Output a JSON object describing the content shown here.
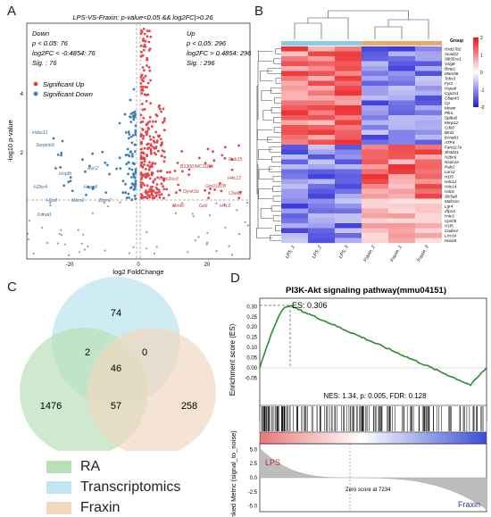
{
  "panels": {
    "a": "A",
    "b": "B",
    "c": "C",
    "d": "D"
  },
  "volcano": {
    "title": "LPS-VS-Fraxin: p-value<0.05 && log2FC|>0.26",
    "down_lines": [
      "Down",
      "p < 0.05: 76",
      "log2FC < -0.4854: 76",
      "Sig. : 76"
    ],
    "up_lines": [
      "Up",
      "p < 0.05: 296",
      "log2FC > 0.4854: 296",
      "Sig. : 296"
    ],
    "legend": [
      "Significant Up",
      "Significant Down"
    ],
    "xlabel": "log2 FoldChange",
    "ylabel": "-log10 p-value",
    "xticks": [
      "-20",
      "0",
      "20"
    ],
    "yticks": [
      "2",
      "4"
    ],
    "down_genes": [
      "Hdac11",
      "Serpinb9",
      "Insp8r",
      "Aoc2",
      "H2bc4",
      "Hspa8",
      "H3c8",
      "Mkrn2",
      "Zfpm2",
      "Kcnal1"
    ],
    "up_genes": [
      "Rab15",
      "B130034C11Rik",
      "Pfgs2os3",
      "H4c12",
      "Gm21878",
      "Dynk1b",
      "Chek2",
      "Mmt6",
      "Gdx",
      "H4c3"
    ],
    "colors": {
      "up": "#e0464a",
      "down": "#3f7fb3"
    }
  },
  "heatmap": {
    "legend_title": "Group",
    "scale_ticks": [
      "2",
      "1",
      "0",
      "-1",
      "-2"
    ],
    "samples": [
      "LPS_1",
      "LPS_2",
      "LPS_3",
      "Fraxin_2",
      "Fraxin_1",
      "Fraxin_3"
    ],
    "genes": [
      "Hsd17b2",
      "Acad12",
      "Slk35ss1",
      "Vsig8",
      "Bmp1",
      "March8",
      "Tcbs3",
      "Fyr2",
      "Hspa8",
      "Cyp2s1",
      "C8ap43",
      "Cp",
      "Mcam",
      "Pllra",
      "Spiba5",
      "Mmp12",
      "Cd93",
      "Btnl1",
      "Kcnab1",
      "ATP4",
      "Fam117a",
      "Sh3d21",
      "H2bc6",
      "Nsun1a",
      "Palc2",
      "Lars2",
      "H1f3",
      "H4c12",
      "H4c14",
      "H3c6",
      "Slc5a8",
      "Mafr1os",
      "Lgr4",
      "Zfp14",
      "H4c3",
      "Cpsf4l",
      "H1f5",
      "Cadm4",
      "Lrrc34",
      "Hoxa5"
    ],
    "group_colors": [
      "#8fc9e8",
      "#e8a874"
    ]
  },
  "venn": {
    "values": {
      "transcriptomics_only": "74",
      "ra_only": "1476",
      "fraxin_only": "258",
      "ra_trans": "2",
      "trans_fraxin": "0",
      "ra_fraxin": "57",
      "all": "46"
    },
    "legend": [
      "RA",
      "Transcriptomics",
      "Fraxin"
    ],
    "colors": {
      "ra": "#b9dfb8",
      "trans": "#bfe6f2",
      "fraxin": "#f1d9c0"
    }
  },
  "gsea": {
    "title": "PI3K-Akt signaling pathway(mmu04151)",
    "es_label": "ES: 0.306",
    "stats": "NES: 1.34, p: 0.005, FDR: 0.128",
    "ylabel_top": "Enrichment score (ES)",
    "yticks_top": [
      "0.30",
      "0.25",
      "0.20",
      "0.15",
      "0.10",
      "0.05",
      "0.00",
      "-0.05"
    ],
    "ylabel_bottom": "Ranked Metric (signal_to_noise)",
    "yticks_bottom": [
      "5.0",
      "2.5",
      "0.0",
      "-2.5",
      "-5.0"
    ],
    "lps_label": "LPS",
    "fraxin_label": "Fraxin",
    "zero_label": "Zero score at 7234",
    "colors": {
      "curve": "#2e8b2e",
      "lps": "#b03030",
      "fraxin": "#2a3a9a"
    }
  }
}
